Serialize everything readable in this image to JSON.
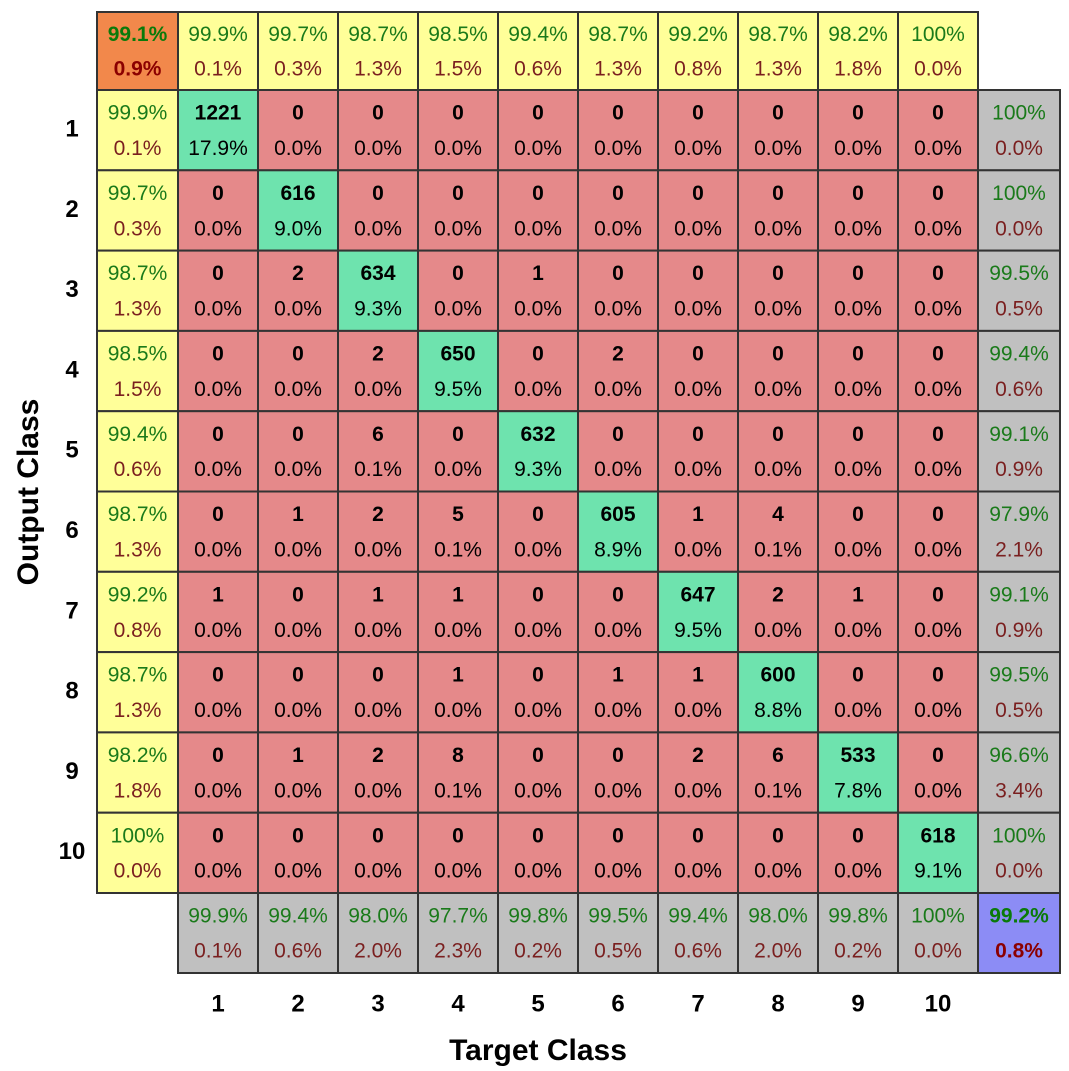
{
  "x_label": "Target Class",
  "y_label": "Output Class",
  "col_labels": [
    "1",
    "2",
    "3",
    "4",
    "5",
    "6",
    "7",
    "8",
    "9",
    "10"
  ],
  "row_labels": [
    "1",
    "2",
    "3",
    "4",
    "5",
    "6",
    "7",
    "8",
    "9",
    "10"
  ],
  "corner_top_left": [
    "99.1%",
    "0.9%"
  ],
  "corner_bottom_right": [
    "99.2%",
    "0.8%"
  ],
  "top_row": [
    [
      "99.9%",
      "0.1%"
    ],
    [
      "99.7%",
      "0.3%"
    ],
    [
      "98.7%",
      "1.3%"
    ],
    [
      "98.5%",
      "1.5%"
    ],
    [
      "99.4%",
      "0.6%"
    ],
    [
      "98.7%",
      "1.3%"
    ],
    [
      "99.2%",
      "0.8%"
    ],
    [
      "98.7%",
      "1.3%"
    ],
    [
      "98.2%",
      "1.8%"
    ],
    [
      "100%",
      "0.0%"
    ]
  ],
  "left_column": [
    [
      "99.9%",
      "0.1%"
    ],
    [
      "99.7%",
      "0.3%"
    ],
    [
      "98.7%",
      "1.3%"
    ],
    [
      "98.5%",
      "1.5%"
    ],
    [
      "99.4%",
      "0.6%"
    ],
    [
      "98.7%",
      "1.3%"
    ],
    [
      "99.2%",
      "0.8%"
    ],
    [
      "98.7%",
      "1.3%"
    ],
    [
      "98.2%",
      "1.8%"
    ],
    [
      "100%",
      "0.0%"
    ]
  ],
  "right_column": [
    [
      "100%",
      "0.0%"
    ],
    [
      "100%",
      "0.0%"
    ],
    [
      "99.5%",
      "0.5%"
    ],
    [
      "99.4%",
      "0.6%"
    ],
    [
      "99.1%",
      "0.9%"
    ],
    [
      "97.9%",
      "2.1%"
    ],
    [
      "99.1%",
      "0.9%"
    ],
    [
      "99.5%",
      "0.5%"
    ],
    [
      "96.6%",
      "3.4%"
    ],
    [
      "100%",
      "0.0%"
    ]
  ],
  "bottom_row": [
    [
      "99.9%",
      "0.1%"
    ],
    [
      "99.4%",
      "0.6%"
    ],
    [
      "98.0%",
      "2.0%"
    ],
    [
      "97.7%",
      "2.3%"
    ],
    [
      "99.8%",
      "0.2%"
    ],
    [
      "99.5%",
      "0.5%"
    ],
    [
      "99.4%",
      "0.6%"
    ],
    [
      "98.0%",
      "2.0%"
    ],
    [
      "99.8%",
      "0.2%"
    ],
    [
      "100%",
      "0.0%"
    ]
  ],
  "counts": [
    [
      "1221",
      "0",
      "0",
      "0",
      "0",
      "0",
      "0",
      "0",
      "0",
      "0"
    ],
    [
      "0",
      "616",
      "0",
      "0",
      "0",
      "0",
      "0",
      "0",
      "0",
      "0"
    ],
    [
      "0",
      "2",
      "634",
      "0",
      "1",
      "0",
      "0",
      "0",
      "0",
      "0"
    ],
    [
      "0",
      "0",
      "2",
      "650",
      "0",
      "2",
      "0",
      "0",
      "0",
      "0"
    ],
    [
      "0",
      "0",
      "6",
      "0",
      "632",
      "0",
      "0",
      "0",
      "0",
      "0"
    ],
    [
      "0",
      "1",
      "2",
      "5",
      "0",
      "605",
      "1",
      "4",
      "0",
      "0"
    ],
    [
      "1",
      "0",
      "1",
      "1",
      "0",
      "0",
      "647",
      "2",
      "1",
      "0"
    ],
    [
      "0",
      "0",
      "0",
      "1",
      "0",
      "1",
      "1",
      "600",
      "0",
      "0"
    ],
    [
      "0",
      "1",
      "2",
      "8",
      "0",
      "0",
      "2",
      "6",
      "533",
      "0"
    ],
    [
      "0",
      "0",
      "0",
      "0",
      "0",
      "0",
      "0",
      "0",
      "0",
      "618"
    ]
  ],
  "percents": [
    [
      "17.9%",
      "0.0%",
      "0.0%",
      "0.0%",
      "0.0%",
      "0.0%",
      "0.0%",
      "0.0%",
      "0.0%",
      "0.0%"
    ],
    [
      "0.0%",
      "9.0%",
      "0.0%",
      "0.0%",
      "0.0%",
      "0.0%",
      "0.0%",
      "0.0%",
      "0.0%",
      "0.0%"
    ],
    [
      "0.0%",
      "0.0%",
      "9.3%",
      "0.0%",
      "0.0%",
      "0.0%",
      "0.0%",
      "0.0%",
      "0.0%",
      "0.0%"
    ],
    [
      "0.0%",
      "0.0%",
      "0.0%",
      "9.5%",
      "0.0%",
      "0.0%",
      "0.0%",
      "0.0%",
      "0.0%",
      "0.0%"
    ],
    [
      "0.0%",
      "0.0%",
      "0.1%",
      "0.0%",
      "9.3%",
      "0.0%",
      "0.0%",
      "0.0%",
      "0.0%",
      "0.0%"
    ],
    [
      "0.0%",
      "0.0%",
      "0.0%",
      "0.1%",
      "0.0%",
      "8.9%",
      "0.0%",
      "0.1%",
      "0.0%",
      "0.0%"
    ],
    [
      "0.0%",
      "0.0%",
      "0.0%",
      "0.0%",
      "0.0%",
      "0.0%",
      "9.5%",
      "0.0%",
      "0.0%",
      "0.0%"
    ],
    [
      "0.0%",
      "0.0%",
      "0.0%",
      "0.0%",
      "0.0%",
      "0.0%",
      "0.0%",
      "8.8%",
      "0.0%",
      "0.0%"
    ],
    [
      "0.0%",
      "0.0%",
      "0.0%",
      "0.1%",
      "0.0%",
      "0.0%",
      "0.0%",
      "0.1%",
      "7.8%",
      "0.0%"
    ],
    [
      "0.0%",
      "0.0%",
      "0.0%",
      "0.0%",
      "0.0%",
      "0.0%",
      "0.0%",
      "0.0%",
      "0.0%",
      "9.1%"
    ]
  ]
}
